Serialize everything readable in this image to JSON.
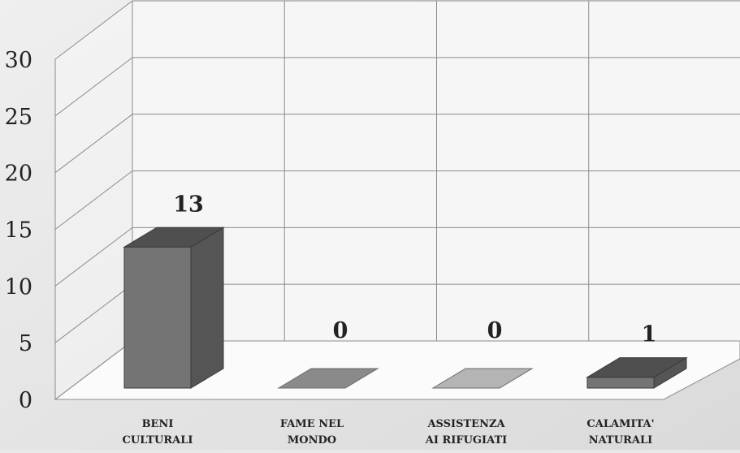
{
  "chart_data": {
    "type": "bar",
    "style": "3d",
    "categories": [
      "BENI CULTURALI",
      "FAME NEL MONDO",
      "ASSISTENZA AI RIFUGIATI",
      "CALAMITA' NATURALI"
    ],
    "category_lines": [
      [
        "BENI",
        "CULTURALI"
      ],
      [
        "FAME NEL",
        "MONDO"
      ],
      [
        "ASSISTENZA",
        "AI RIFUGIATI"
      ],
      [
        "CALAMITA'",
        "NATURALI"
      ]
    ],
    "values": [
      13,
      0,
      0,
      1
    ],
    "data_labels": [
      "13",
      "0",
      "0",
      "1"
    ],
    "ylim": [
      0,
      30
    ],
    "yticks": [
      0,
      5,
      10,
      15,
      20,
      25,
      30
    ],
    "grid": true,
    "legend": "none",
    "colors": {
      "bar_front": "#747474",
      "bar_top": "#4f4f4f",
      "bar_side": "#555555",
      "bar_flat_fame": "#8a8a8a",
      "bar_flat_assistenza": "#b4b4b4",
      "background": "#e8e8e8",
      "back_wall": "#f6f6f6",
      "floor": "#fbfbfb",
      "grid": "#8c8c8c"
    }
  }
}
